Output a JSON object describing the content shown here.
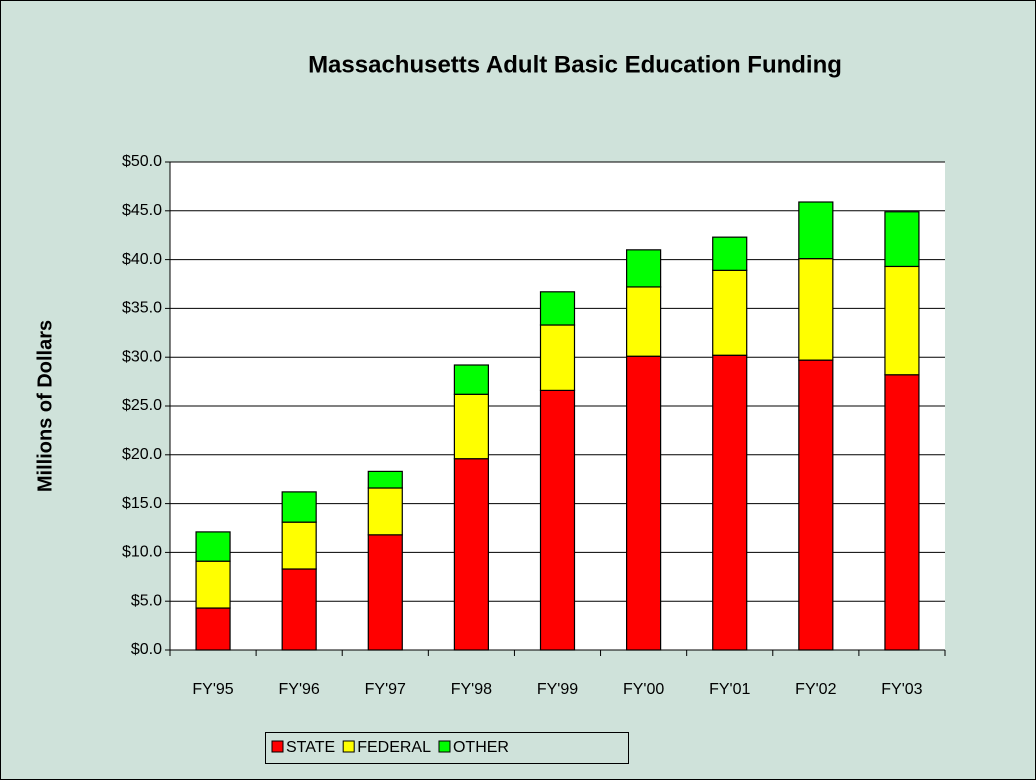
{
  "chart_data": {
    "type": "stacked_bar",
    "title": "Massachusetts Adult Basic Education Funding",
    "y_label": "Millions of Dollars",
    "categories": [
      "FY'95",
      "FY'96",
      "FY'97",
      "FY'98",
      "FY'99",
      "FY'00",
      "FY'01",
      "FY'02",
      "FY'03"
    ],
    "series": [
      {
        "name": "STATE",
        "color": "#ff0000",
        "values": [
          4.3,
          8.3,
          11.8,
          19.6,
          26.6,
          30.1,
          30.2,
          29.7,
          28.2
        ]
      },
      {
        "name": "FEDERAL",
        "color": "#ffff00",
        "values": [
          4.8,
          4.8,
          4.8,
          6.6,
          6.7,
          7.1,
          8.7,
          10.4,
          11.1
        ]
      },
      {
        "name": "OTHER",
        "color": "#00ff00",
        "values": [
          3.0,
          3.1,
          1.7,
          3.0,
          3.4,
          3.8,
          3.4,
          5.8,
          5.6
        ]
      }
    ],
    "ylim": [
      0,
      50
    ],
    "yticks": [
      {
        "value": 0,
        "label": "$0.0"
      },
      {
        "value": 5,
        "label": "$5.0"
      },
      {
        "value": 10,
        "label": "$10.0"
      },
      {
        "value": 15,
        "label": "$15.0"
      },
      {
        "value": 20,
        "label": "$20.0"
      },
      {
        "value": 25,
        "label": "$25.0"
      },
      {
        "value": 30,
        "label": "$30.0"
      },
      {
        "value": 35,
        "label": "$35.0"
      },
      {
        "value": 40,
        "label": "$40.0"
      },
      {
        "value": 45,
        "label": "$45.0"
      },
      {
        "value": 50,
        "label": "$50.0"
      }
    ],
    "grid": true,
    "legend": "bottom"
  }
}
